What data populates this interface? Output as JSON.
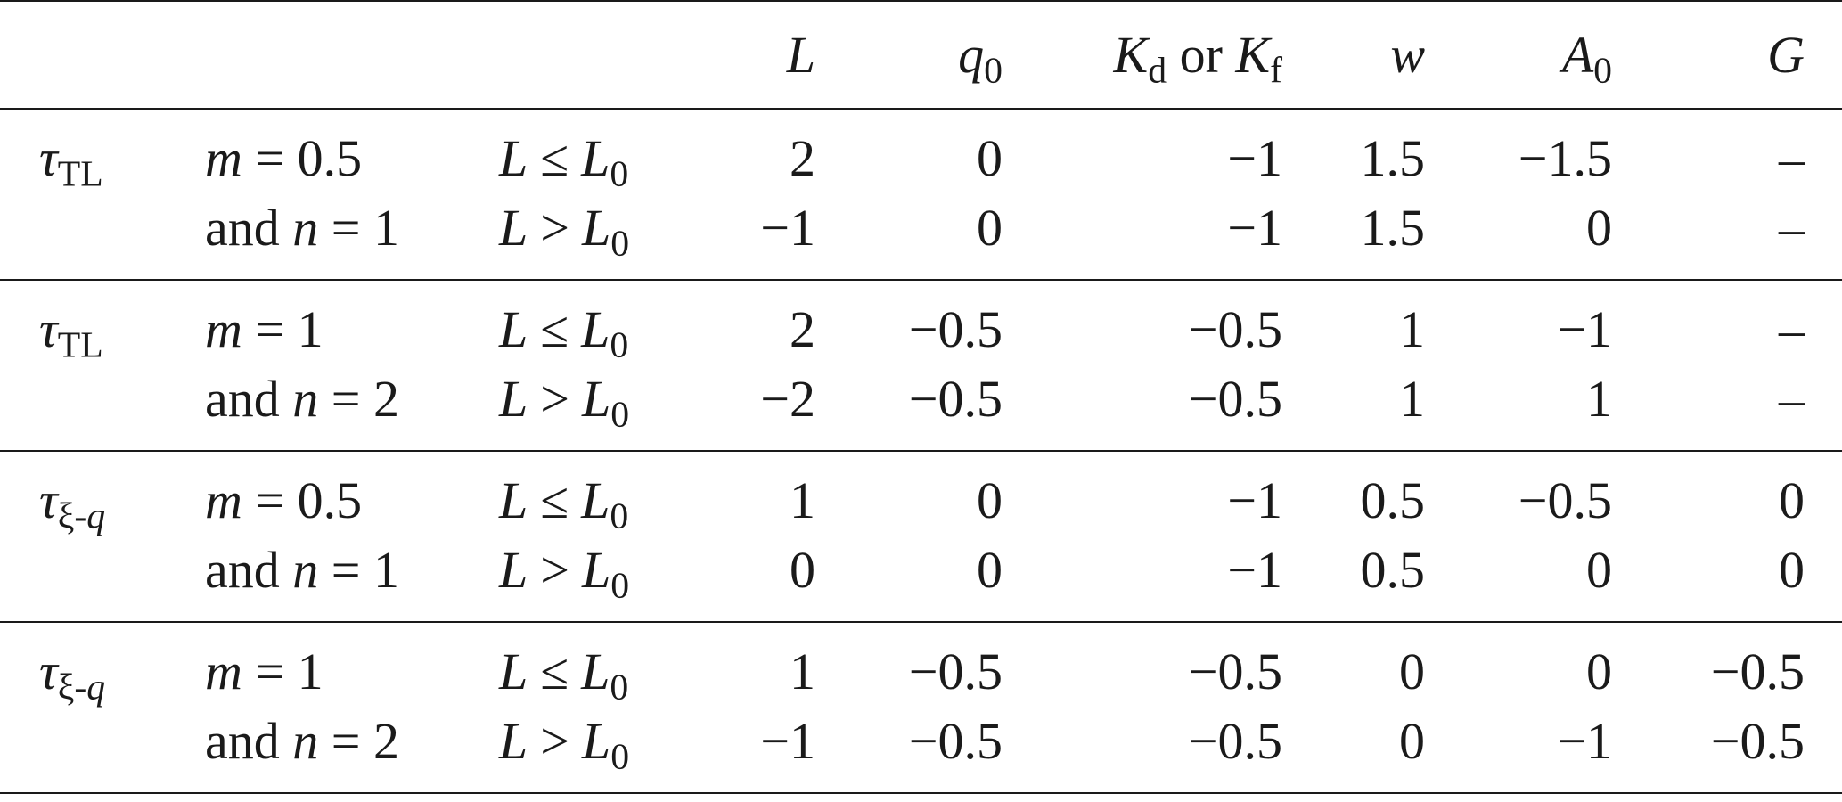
{
  "header": {
    "L": "L",
    "q0_sym": "q",
    "q0_sub": "0",
    "K_sym1": "K",
    "K_sub1": "d",
    "K_or": " or ",
    "K_sym2": "K",
    "K_sub2": "f",
    "w": "w",
    "A0_sym": "A",
    "A0_sub": "0",
    "G": "G"
  },
  "groups": [
    {
      "tau_sym": "τ",
      "tau_sub": "TL",
      "m_label": "m = 0.5",
      "n_label": "and n = 1",
      "rows": [
        {
          "cond_rel": "≤",
          "L": "2",
          "q0": "0",
          "K": "−1",
          "w": "1.5",
          "A0": "−1.5",
          "G": "–"
        },
        {
          "cond_rel": ">",
          "L": "−1",
          "q0": "0",
          "K": "−1",
          "w": "1.5",
          "A0": "0",
          "G": "–"
        }
      ]
    },
    {
      "tau_sym": "τ",
      "tau_sub": "TL",
      "m_label": "m = 1",
      "n_label": "and n = 2",
      "rows": [
        {
          "cond_rel": "≤",
          "L": "2",
          "q0": "−0.5",
          "K": "−0.5",
          "w": "1",
          "A0": "−1",
          "G": "–"
        },
        {
          "cond_rel": ">",
          "L": "−2",
          "q0": "−0.5",
          "K": "−0.5",
          "w": "1",
          "A0": "1",
          "G": "–"
        }
      ]
    },
    {
      "tau_sym": "τ",
      "tau_sub": "ξ-q",
      "m_label": "m = 0.5",
      "n_label": "and n = 1",
      "rows": [
        {
          "cond_rel": "≤",
          "L": "1",
          "q0": "0",
          "K": "−1",
          "w": "0.5",
          "A0": "−0.5",
          "G": "0"
        },
        {
          "cond_rel": ">",
          "L": "0",
          "q0": "0",
          "K": "−1",
          "w": "0.5",
          "A0": "0",
          "G": "0"
        }
      ]
    },
    {
      "tau_sym": "τ",
      "tau_sub": "ξ-q",
      "m_label": "m = 1",
      "n_label": "and n = 2",
      "rows": [
        {
          "cond_rel": "≤",
          "L": "1",
          "q0": "−0.5",
          "K": "−0.5",
          "w": "0",
          "A0": "0",
          "G": "−0.5"
        },
        {
          "cond_rel": ">",
          "L": "−1",
          "q0": "−0.5",
          "K": "−0.5",
          "w": "0",
          "A0": "−1",
          "G": "−0.5"
        }
      ]
    }
  ],
  "cond": {
    "L": "L",
    "L0_sym": "L",
    "L0_sub": "0"
  }
}
